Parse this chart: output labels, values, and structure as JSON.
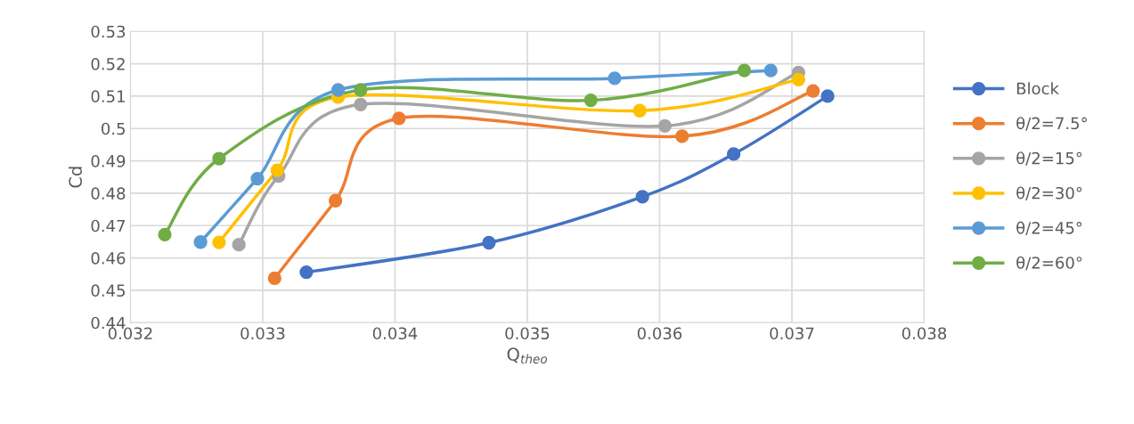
{
  "chart_data": {
    "type": "line",
    "xlabel": "Q$_{theo}$",
    "ylabel": "Cd",
    "xlim": [
      0.032,
      0.038
    ],
    "xticks": [
      0.032,
      0.033,
      0.034,
      0.035,
      0.036,
      0.037,
      0.038
    ],
    "ylim": [
      0.44,
      0.53
    ],
    "yticks": [
      0.44,
      0.45,
      0.46,
      0.47,
      0.48,
      0.49,
      0.5,
      0.51,
      0.52,
      0.53
    ],
    "grid": true,
    "legend": "right",
    "marker": "circle",
    "line_style": "solid",
    "series": [
      {
        "name": "Block",
        "color": "#4472c4",
        "x": [
          0.03333,
          0.03471,
          0.03587,
          0.03656,
          0.03727
        ],
        "values": [
          0.4556,
          0.4647,
          0.4789,
          0.4921,
          0.51
        ]
      },
      {
        "name": "θ/2=7.5°",
        "color": "#ed7d31",
        "x": [
          0.03309,
          0.03355,
          0.03403,
          0.03617,
          0.03716
        ],
        "values": [
          0.4537,
          0.4777,
          0.5031,
          0.4976,
          0.5116
        ]
      },
      {
        "name": "θ/2=15°",
        "color": "#a5a5a5",
        "x": [
          0.03282,
          0.03312,
          0.03374,
          0.03604,
          0.03705
        ],
        "values": [
          0.4641,
          0.4853,
          0.5074,
          0.5008,
          0.5173
        ]
      },
      {
        "name": "θ/2=30°",
        "color": "#ffc000",
        "x": [
          0.03267,
          0.03311,
          0.03357,
          0.03585,
          0.03705
        ],
        "values": [
          0.4648,
          0.4871,
          0.5097,
          0.5055,
          0.5151
        ]
      },
      {
        "name": "θ/2=45°",
        "color": "#5b9bd5",
        "x": [
          0.03253,
          0.03296,
          0.03357,
          0.03566,
          0.03684
        ],
        "values": [
          0.4649,
          0.4845,
          0.5119,
          0.5155,
          0.5179
        ]
      },
      {
        "name": "θ/2=60°",
        "color": "#70ad47",
        "x": [
          0.03226,
          0.03267,
          0.03374,
          0.03548,
          0.03664
        ],
        "values": [
          0.4672,
          0.4907,
          0.5119,
          0.5087,
          0.5179
        ]
      }
    ]
  }
}
